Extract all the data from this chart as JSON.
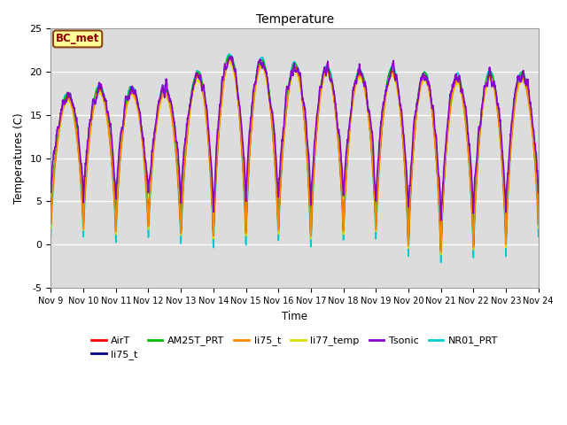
{
  "title": "Temperature",
  "xlabel": "Time",
  "ylabel": "Temperatures (C)",
  "ylim": [
    -5,
    25
  ],
  "x_tick_labels": [
    "Nov 9",
    "Nov 10",
    "Nov 11",
    "Nov 12",
    "Nov 13",
    "Nov 14",
    "Nov 15",
    "Nov 16",
    "Nov 17",
    "Nov 18",
    "Nov 19",
    "Nov 20",
    "Nov 21",
    "Nov 22",
    "Nov 23",
    "Nov 24"
  ],
  "yticks": [
    -5,
    0,
    5,
    10,
    15,
    20,
    25
  ],
  "annotation_text": "BC_met",
  "annotation_box_color": "#FFFF99",
  "annotation_box_edge": "#8B4513",
  "series": [
    {
      "label": "AirT",
      "color": "#FF0000",
      "lw": 1.2,
      "zorder": 4
    },
    {
      "label": "li75_t",
      "color": "#00008B",
      "lw": 1.2,
      "zorder": 3
    },
    {
      "label": "AM25T_PRT",
      "color": "#00BB00",
      "lw": 1.2,
      "zorder": 4
    },
    {
      "label": "li75_t",
      "color": "#FF8800",
      "lw": 1.2,
      "zorder": 4
    },
    {
      "label": "li77_temp",
      "color": "#DDDD00",
      "lw": 1.2,
      "zorder": 3
    },
    {
      "label": "Tsonic",
      "color": "#8800CC",
      "lw": 1.2,
      "zorder": 5
    },
    {
      "label": "NR01_PRT",
      "color": "#00CCCC",
      "lw": 1.2,
      "zorder": 2
    }
  ],
  "bg_color": "#DCDCDC",
  "fig_bg": "#FFFFFF",
  "n_days": 15,
  "pts_per_day": 144
}
